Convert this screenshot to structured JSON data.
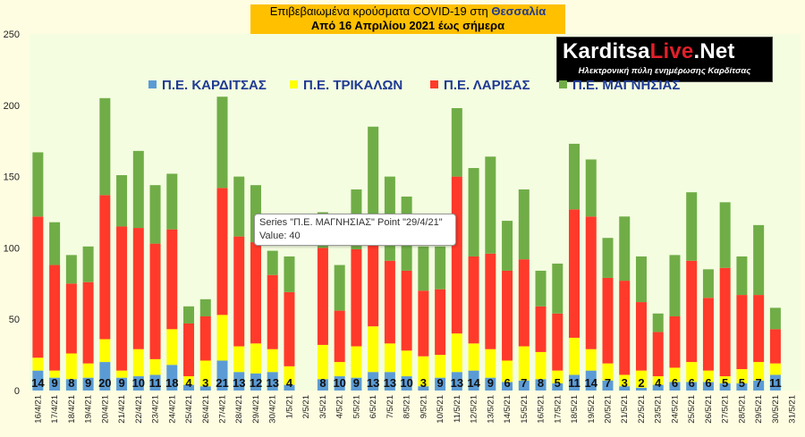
{
  "title": {
    "line1_prefix": "Επιβεβαιωμένα κρούσματα COVID-19 στη ",
    "line1_region": "Θεσσαλία",
    "line2": "Από 16 Απριλίου 2021 έως σήμερα"
  },
  "logo": {
    "part1": "Karditsa",
    "part2": "Live",
    "part3": ".Net",
    "subtitle": "Ηλεκτρονική πύλη ενημέρωσης Καρδίτσας"
  },
  "tooltip": {
    "line1": "Series \"Π.Ε. ΜΑΓΝΗΣΙΑΣ\" Point \"29/4/21\"",
    "line2": "Value: 40"
  },
  "chart_data": {
    "type": "bar",
    "stacked": true,
    "ylim": [
      0,
      250
    ],
    "yticks": [
      0,
      50,
      100,
      150,
      200,
      250
    ],
    "grid": false,
    "legend_position": "top",
    "categories": [
      "16/4/21",
      "17/4/21",
      "18/4/21",
      "19/4/21",
      "20/4/21",
      "21/4/21",
      "22/4/21",
      "23/4/21",
      "24/4/21",
      "25/4/21",
      "26/4/21",
      "27/4/21",
      "28/4/21",
      "29/4/21",
      "30/4/21",
      "1/5/21",
      "2/5/21",
      "3/5/21",
      "4/5/21",
      "5/5/21",
      "6/5/21",
      "7/5/21",
      "8/5/21",
      "9/5/21",
      "10/5/21",
      "11/5/21",
      "12/5/21",
      "13/5/21",
      "14/5/21",
      "15/5/21",
      "16/5/21",
      "17/5/21",
      "18/5/21",
      "19/5/21",
      "20/5/21",
      "21/5/21",
      "22/5/21",
      "23/5/21",
      "24/5/21",
      "25/5/21",
      "26/5/21",
      "27/5/21",
      "28/5/21",
      "29/5/21",
      "30/5/21",
      "31/5/21"
    ],
    "series": [
      {
        "name": "Π.Ε. ΚΑΡΔΙΤΣΑΣ",
        "color": "#5b9bd5",
        "values": [
          14,
          9,
          8,
          9,
          20,
          9,
          10,
          11,
          18,
          4,
          3,
          21,
          13,
          12,
          13,
          4,
          0,
          8,
          10,
          9,
          13,
          13,
          10,
          3,
          9,
          13,
          14,
          9,
          6,
          7,
          8,
          5,
          11,
          14,
          7,
          3,
          2,
          4,
          6,
          6,
          6,
          5,
          5,
          7,
          11,
          0
        ]
      },
      {
        "name": "Π.Ε. ΤΡΙΚΑΛΩΝ",
        "color": "#ffff00",
        "values": [
          9,
          5,
          18,
          10,
          16,
          5,
          19,
          11,
          25,
          6,
          18,
          32,
          18,
          21,
          16,
          13,
          0,
          24,
          10,
          22,
          32,
          20,
          18,
          21,
          16,
          27,
          19,
          20,
          15,
          24,
          19,
          9,
          26,
          15,
          12,
          8,
          12,
          6,
          10,
          14,
          8,
          5,
          10,
          13,
          8,
          0
        ]
      },
      {
        "name": "Π.Ε. ΛΑΡΙΣΑΣ",
        "color": "#ff3a2a",
        "values": [
          99,
          74,
          49,
          57,
          101,
          101,
          85,
          81,
          70,
          37,
          31,
          89,
          77,
          71,
          52,
          52,
          0,
          68,
          36,
          68,
          73,
          58,
          56,
          46,
          46,
          110,
          61,
          67,
          63,
          61,
          32,
          40,
          90,
          93,
          60,
          66,
          48,
          31,
          36,
          71,
          51,
          76,
          52,
          47,
          24,
          0
        ]
      },
      {
        "name": "Π.Ε. ΜΑΓΝΗΣΙΑΣ",
        "color": "#70ad47",
        "values": [
          45,
          30,
          20,
          25,
          68,
          36,
          54,
          41,
          39,
          12,
          12,
          64,
          42,
          40,
          17,
          25,
          0,
          25,
          32,
          42,
          67,
          59,
          52,
          31,
          30,
          48,
          62,
          68,
          35,
          49,
          25,
          35,
          46,
          40,
          28,
          45,
          32,
          13,
          43,
          48,
          20,
          46,
          27,
          49,
          15,
          0
        ]
      }
    ],
    "data_labels": [
      "14",
      "9",
      "8",
      "9",
      "20",
      "9",
      "10",
      "11",
      "18",
      "4",
      "3",
      "21",
      "13",
      "12",
      "13",
      "4",
      "",
      "8",
      "10",
      "9",
      "13",
      "13",
      "10",
      "3",
      "9",
      "13",
      "14",
      "9",
      "6",
      "7",
      "8",
      "5",
      "11",
      "14",
      "7",
      "3",
      "2",
      "4",
      "6",
      "6",
      "6",
      "5",
      "5",
      "7",
      "11",
      ""
    ]
  }
}
